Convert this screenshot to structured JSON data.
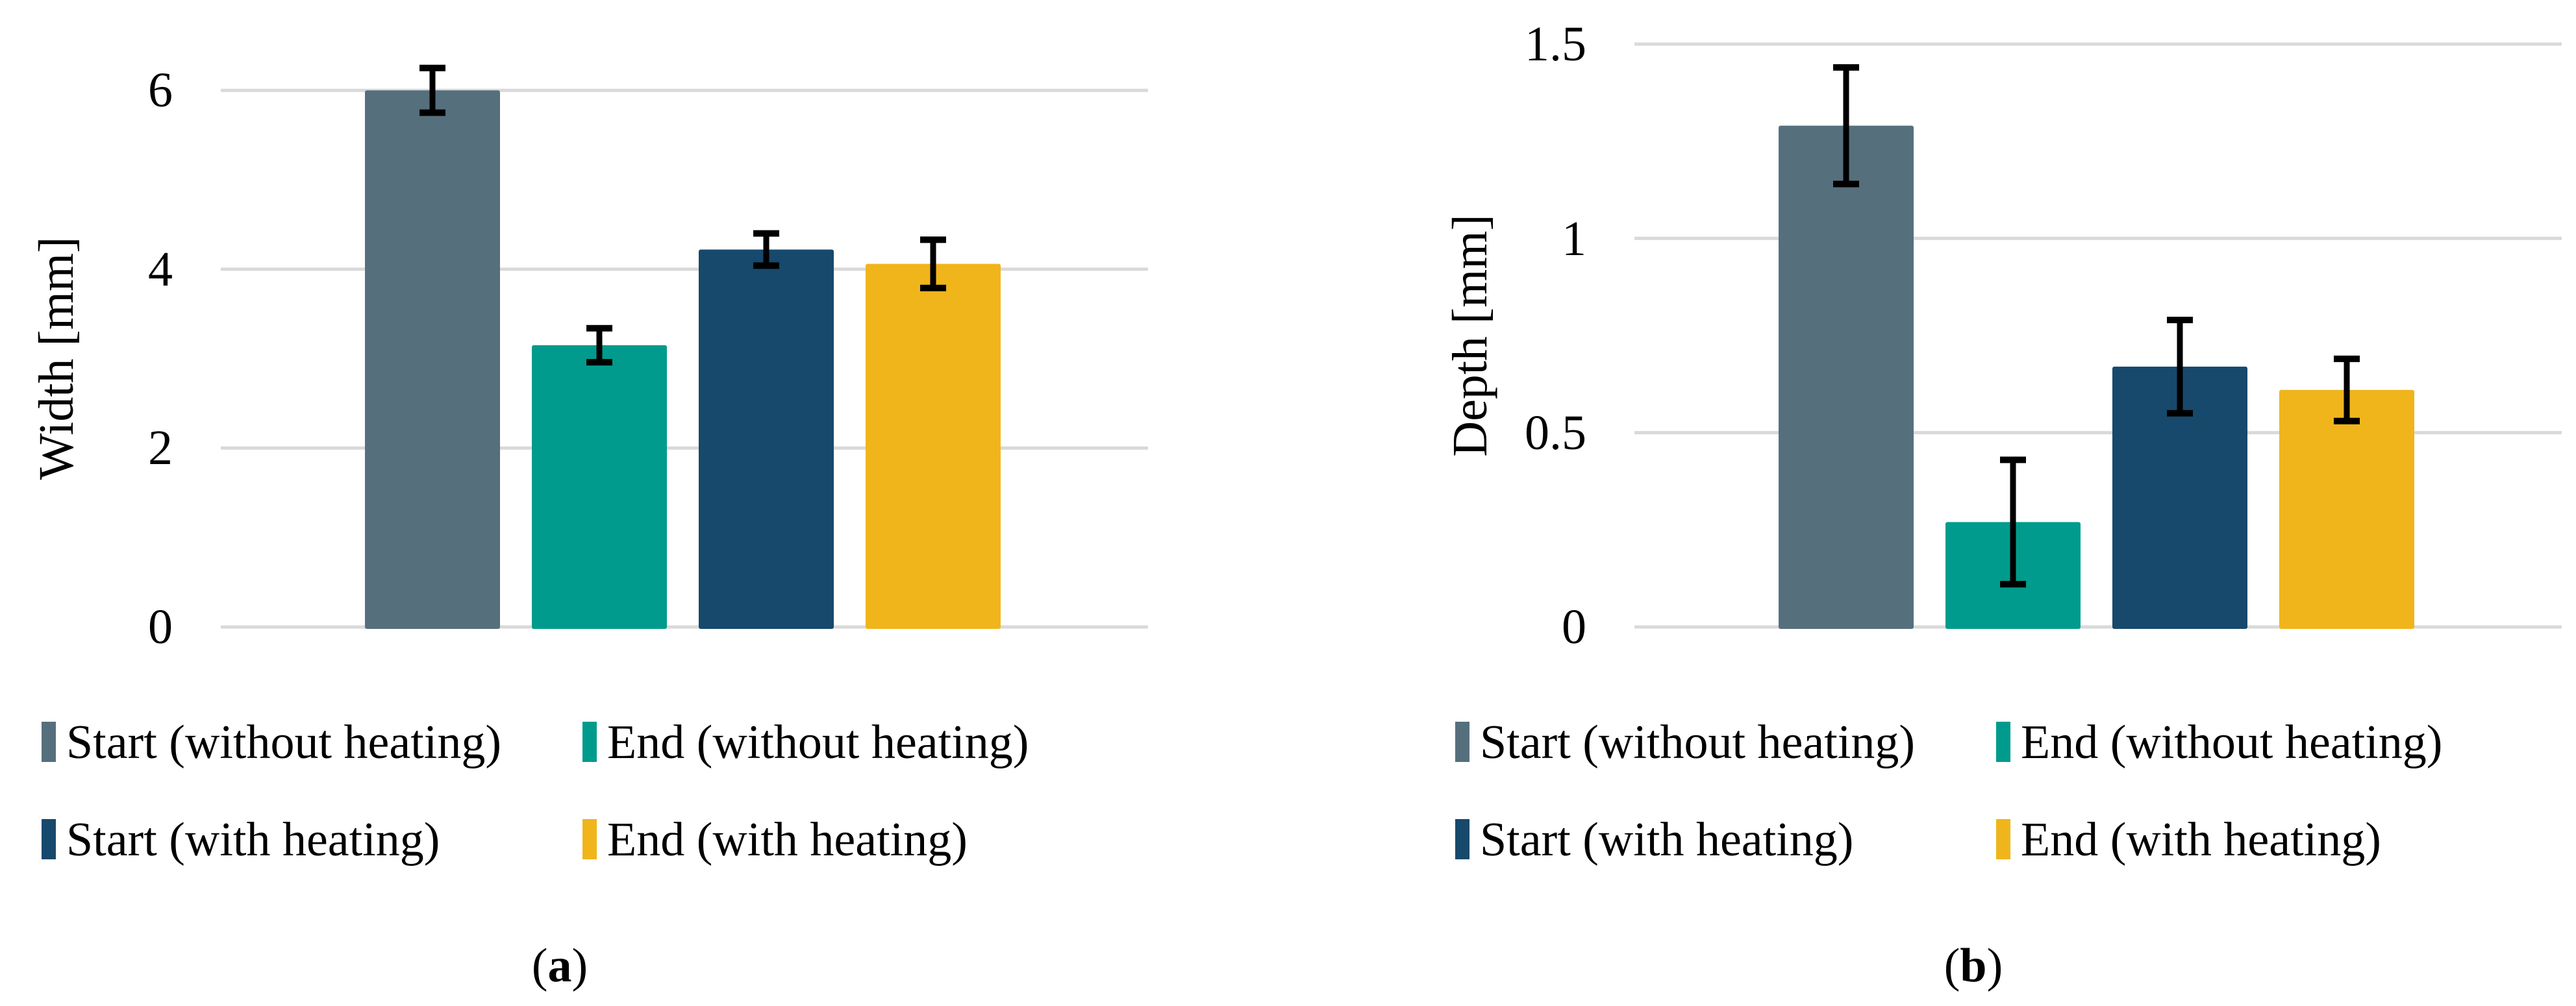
{
  "figure": {
    "background_color": "#ffffff",
    "gridline_color": "#D9D9D9",
    "error_bar_color": "#000000"
  },
  "chart_data": [
    {
      "type": "bar",
      "panel": "a",
      "title": "",
      "xlabel": "",
      "ylabel": "Width [mm]",
      "ylim": [
        0,
        6
      ],
      "grid": "on",
      "legend_position": "bottom",
      "yticks": [
        {
          "value": 0,
          "label": "0"
        },
        {
          "value": 2,
          "label": "2"
        },
        {
          "value": 4,
          "label": "4"
        },
        {
          "value": 6,
          "label": "6"
        }
      ],
      "categories": [
        "Start (without heating)",
        "End (without heating)",
        "Start (with heating)",
        "End (with heating)"
      ],
      "series": [
        {
          "name": "Start (without heating)",
          "value": 6.0,
          "error": 0.25,
          "color": "#566F7D"
        },
        {
          "name": "End (without heating)",
          "value": 3.15,
          "error": 0.19,
          "color": "#009B8C"
        },
        {
          "name": "Start (with heating)",
          "value": 4.22,
          "error": 0.18,
          "color": "#17496C"
        },
        {
          "name": "End (with heating)",
          "value": 4.06,
          "error": 0.27,
          "color": "#F0B51B"
        }
      ]
    },
    {
      "type": "bar",
      "panel": "b",
      "title": "",
      "xlabel": "",
      "ylabel": "Depth [mm]",
      "ylim": [
        0,
        1.5
      ],
      "grid": "on",
      "legend_position": "bottom",
      "yticks": [
        {
          "value": 0,
          "label": "0"
        },
        {
          "value": 0.5,
          "label": "0.5"
        },
        {
          "value": 1,
          "label": "1"
        },
        {
          "value": 1.5,
          "label": "1.5"
        }
      ],
      "categories": [
        "Start (without heating)",
        "End (without heating)",
        "Start (with heating)",
        "End (with heating)"
      ],
      "series": [
        {
          "name": "Start (without heating)",
          "value": 1.29,
          "error": 0.15,
          "color": "#566F7D"
        },
        {
          "name": "End (without heating)",
          "value": 0.27,
          "error": 0.16,
          "color": "#009B8C"
        },
        {
          "name": "Start (with heating)",
          "value": 0.67,
          "error": 0.12,
          "color": "#17496C"
        },
        {
          "name": "End (with heating)",
          "value": 0.61,
          "error": 0.08,
          "color": "#F0B51B"
        }
      ]
    }
  ],
  "legend": {
    "entries": [
      {
        "label": "Start (without heating)",
        "color": "#566F7D"
      },
      {
        "label": "End (without heating)",
        "color": "#009B8C"
      },
      {
        "label": "Start (with heating)",
        "color": "#17496C"
      },
      {
        "label": "End (with heating)",
        "color": "#F0B51B"
      }
    ]
  },
  "captions": {
    "a": {
      "open": "(",
      "letter": "a",
      "close": ")"
    },
    "b": {
      "open": "(",
      "letter": "b",
      "close": ")"
    }
  }
}
